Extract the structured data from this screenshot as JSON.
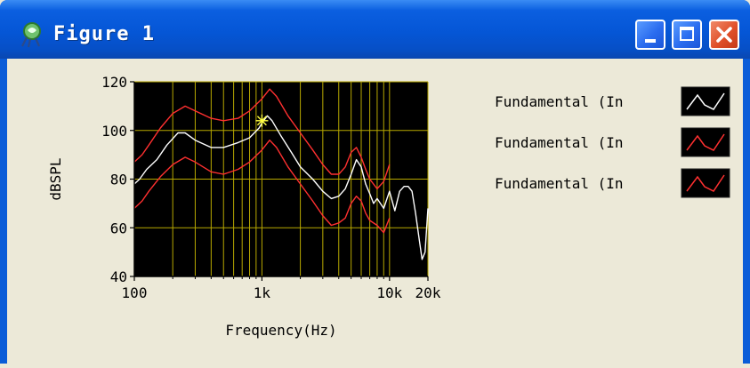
{
  "window": {
    "title": "Figure 1",
    "icon": "matlab-figure-icon",
    "controls": {
      "minimize": "minimize-icon",
      "maximize": "maximize-icon",
      "close": "close-icon"
    }
  },
  "colors": {
    "plot_bg": "#000000",
    "grid": "#b8a800",
    "series_white": "#ffffff",
    "series_red": "#ff3030"
  },
  "chart_data": {
    "type": "line",
    "xscale": "log",
    "xlabel": "Frequency(Hz)",
    "ylabel": "dBSPL",
    "xlim": [
      100,
      20000
    ],
    "ylim": [
      40,
      120
    ],
    "xticks": [
      {
        "value": 100,
        "label": "100"
      },
      {
        "value": 1000,
        "label": "1k"
      },
      {
        "value": 10000,
        "label": "10k"
      },
      {
        "value": 20000,
        "label": "20k"
      }
    ],
    "yticks": [
      {
        "value": 40,
        "label": "40"
      },
      {
        "value": 60,
        "label": "60"
      },
      {
        "value": 80,
        "label": "80"
      },
      {
        "value": 100,
        "label": "100"
      },
      {
        "value": 120,
        "label": "120"
      }
    ],
    "grid": true,
    "legend_position": "right",
    "marker": {
      "x": 1000,
      "y": 104,
      "symbol": "asterisk",
      "color": "#ffff40"
    },
    "series": [
      {
        "name": "Fundamental (In",
        "color": "#ffffff",
        "x": [
          100,
          110,
          125,
          150,
          180,
          220,
          250,
          300,
          400,
          500,
          650,
          800,
          950,
          1000,
          1100,
          1200,
          1400,
          1700,
          2000,
          2500,
          3000,
          3500,
          4000,
          4500,
          5000,
          5500,
          6000,
          6500,
          7000,
          7500,
          8000,
          9000,
          10000,
          11000,
          12000,
          13000,
          14000,
          15000,
          16000,
          17000,
          18000,
          19000,
          20000
        ],
        "y": [
          78,
          80,
          84,
          88,
          94,
          99,
          99,
          96,
          93,
          93,
          95,
          97,
          101,
          103,
          106,
          104,
          98,
          91,
          85,
          80,
          75,
          72,
          73,
          76,
          82,
          88,
          85,
          78,
          74,
          70,
          72,
          68,
          75,
          67,
          75,
          77,
          77,
          75,
          66,
          56,
          47,
          50,
          68
        ]
      },
      {
        "name": "Fundamental (In",
        "color": "#ff3030",
        "x": [
          100,
          115,
          130,
          160,
          200,
          250,
          300,
          400,
          500,
          650,
          800,
          1000,
          1150,
          1300,
          1600,
          2000,
          2500,
          3000,
          3500,
          4000,
          4500,
          5000,
          5500,
          6000,
          6500,
          7000,
          8000,
          9000,
          10000
        ],
        "y": [
          87,
          90,
          94,
          101,
          107,
          110,
          108,
          105,
          104,
          105,
          108,
          113,
          117,
          114,
          106,
          99,
          92,
          86,
          82,
          82,
          85,
          91,
          93,
          89,
          84,
          80,
          76,
          79,
          86
        ]
      },
      {
        "name": "Fundamental (In",
        "color": "#ff3030",
        "x": [
          100,
          115,
          130,
          160,
          200,
          250,
          300,
          400,
          500,
          650,
          800,
          1000,
          1150,
          1300,
          1600,
          2000,
          2500,
          3000,
          3500,
          4000,
          4500,
          5000,
          5500,
          6000,
          6500,
          7000,
          8000,
          9000,
          10000
        ],
        "y": [
          68,
          71,
          75,
          81,
          86,
          89,
          87,
          83,
          82,
          84,
          87,
          92,
          96,
          93,
          85,
          78,
          71,
          65,
          61,
          62,
          64,
          70,
          73,
          71,
          66,
          63,
          61,
          58,
          64
        ]
      }
    ]
  }
}
